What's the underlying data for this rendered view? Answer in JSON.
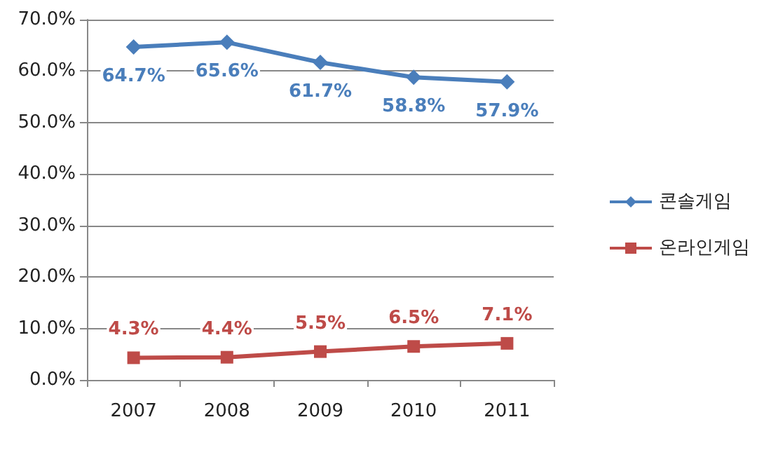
{
  "chart_data": {
    "type": "line",
    "categories": [
      "2007",
      "2008",
      "2009",
      "2010",
      "2011"
    ],
    "series": [
      {
        "name": "콘솔게임",
        "color": "#4a7ebb",
        "marker": "diamond",
        "values": [
          64.7,
          65.6,
          61.7,
          58.8,
          57.9
        ],
        "value_labels": [
          "64.7%",
          "65.6%",
          "61.7%",
          "58.8%",
          "57.9%"
        ]
      },
      {
        "name": "온라인게임",
        "color": "#be4b48",
        "marker": "square",
        "values": [
          4.3,
          4.4,
          5.5,
          6.5,
          7.1
        ],
        "value_labels": [
          "4.3%",
          "4.4%",
          "5.5%",
          "6.5%",
          "7.1%"
        ]
      }
    ],
    "ylim": [
      0,
      70
    ],
    "yticks": [
      {
        "value": 0,
        "label": "0.0%"
      },
      {
        "value": 10,
        "label": "10.0%"
      },
      {
        "value": 20,
        "label": "20.0%"
      },
      {
        "value": 30,
        "label": "30.0%"
      },
      {
        "value": 40,
        "label": "40.0%"
      },
      {
        "value": 50,
        "label": "50.0%"
      },
      {
        "value": 60,
        "label": "60.0%"
      },
      {
        "value": 70,
        "label": "70.0%"
      }
    ],
    "grid": "y",
    "legend": "right"
  }
}
